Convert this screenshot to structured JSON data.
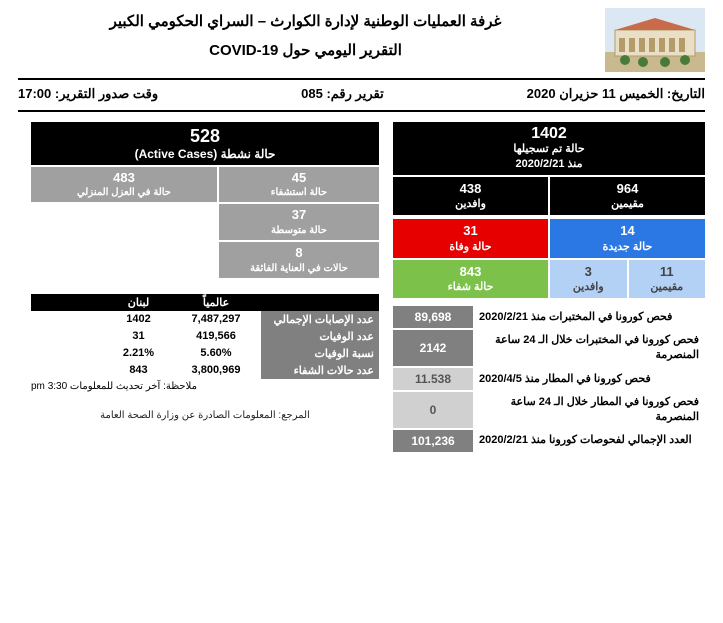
{
  "header": {
    "title1": "غرفة العمليات الوطنية لإدارة الكوارث – السراي الحكومي الكبير",
    "title2": "التقرير اليومي حول COVID-19"
  },
  "meta": {
    "date_lbl": "التاريخ: الخميس 11 حزيران 2020",
    "report_lbl": "تقرير رقم: 085",
    "time_lbl": "وقت صدور التقرير: 17:00"
  },
  "right": {
    "total": {
      "num": "1402",
      "l1": "حالة تم تسجيلها",
      "l2": "منذ 2020/2/21"
    },
    "split": {
      "res_n": "964",
      "res_t": "مقيمين",
      "inc_n": "438",
      "inc_t": "وافدين"
    },
    "newc": {
      "num": "14",
      "t": "حالة جديدة"
    },
    "newsplit": {
      "res_n": "11",
      "res_t": "مقيمين",
      "inc_n": "3",
      "inc_t": "وافدين"
    },
    "death": {
      "num": "31",
      "t": "حالة وفاة"
    },
    "recov": {
      "num": "843",
      "t": "حالة شفاء"
    },
    "tests": [
      {
        "lbl": "فحص كورونا في المختبرات منذ 2020/2/21",
        "val": "89,698",
        "cls": "blk-dgray"
      },
      {
        "lbl": "فحص كورونا في المختبرات خلال الـ 24 ساعة المنصرمة",
        "val": "2142",
        "cls": "blk-dgray"
      },
      {
        "lbl": "فحص كورونا في المطار منذ 2020/4/5",
        "val": "11.538",
        "cls": "blk-lgray"
      },
      {
        "lbl": "فحص كورونا في المطار خلال الـ 24 ساعة المنصرمة",
        "val": "0",
        "cls": "blk-lgray"
      },
      {
        "lbl": "العدد الإجمالي لفحوصات كورونا منذ 2020/2/21",
        "val": "101,236",
        "cls": "blk-dgray"
      }
    ]
  },
  "left": {
    "active": {
      "num": "528",
      "lbl": "حالة نشطة (Active Cases)"
    },
    "breakdown": {
      "c1": {
        "n": "45",
        "t": "حالة استشفاء"
      },
      "c2": {
        "n": "37",
        "t": "حالة متوسطة"
      },
      "c3": {
        "n": "8",
        "t": "حالات في العناية الفائقة"
      },
      "iso": {
        "n": "483",
        "t": "حالة في العزل المنزلي"
      }
    },
    "table": {
      "h_lbl": "",
      "h_g": "عالمياً",
      "h_l": "لبنان",
      "rows": [
        {
          "lbl": "عدد الإصابات الإجمالي",
          "g": "7,487,297",
          "l": "1402"
        },
        {
          "lbl": "عدد الوفيات",
          "g": "419,566",
          "l": "31"
        },
        {
          "lbl": "نسبة الوفيات",
          "g": "5.60%",
          "l": "2.21%"
        },
        {
          "lbl": "عدد حالات الشفاء",
          "g": "3,800,969",
          "l": "843"
        }
      ],
      "note": "ملاحظة: آخر تحديث للمعلومات 3:30 pm"
    },
    "ref": "المرجع: المعلومات الصادرة عن وزارة الصحة العامة"
  }
}
